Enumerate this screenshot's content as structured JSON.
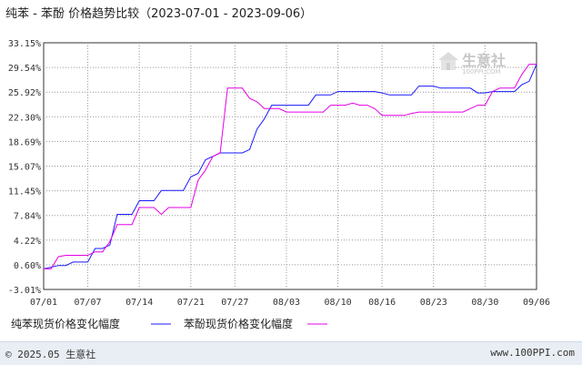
{
  "title": "纯苯 - 苯酚 价格趋势比较（2023-07-01 - 2023-09-06）",
  "watermark": {
    "brand": "生意社",
    "url": "100PPI.COM"
  },
  "footer": {
    "copyright": "© 2025.05 生意社",
    "url": "www.100PPI.com"
  },
  "colors": {
    "series1": "#1a1aff",
    "series2": "#e600e6",
    "grid": "#999999",
    "axis": "#333333"
  },
  "chart_data": {
    "type": "line",
    "title": "纯苯 - 苯酚 价格趋势比较（2023-07-01 - 2023-09-06）",
    "xlabel": "",
    "ylabel": "",
    "x_ticks": [
      "07/01",
      "07/07",
      "07/14",
      "07/21",
      "07/27",
      "08/03",
      "08/10",
      "08/16",
      "08/23",
      "08/30",
      "09/06"
    ],
    "y_ticks": [
      "33.15%",
      "29.54%",
      "25.92%",
      "22.30%",
      "18.69%",
      "15.07%",
      "11.45%",
      "7.84%",
      "4.22%",
      "0.60%",
      "-3.01%"
    ],
    "ylim": [
      -3.01,
      33.15
    ],
    "grid": true,
    "legend_position": "bottom",
    "series": [
      {
        "name": "纯苯现货价格变化幅度",
        "x": [
          "07/01",
          "07/03",
          "07/04",
          "07/05",
          "07/06",
          "07/07",
          "07/08",
          "07/09",
          "07/10",
          "07/11",
          "07/12",
          "07/13",
          "07/14",
          "07/15",
          "07/16",
          "07/17",
          "07/18",
          "07/19",
          "07/20",
          "07/21",
          "07/22",
          "07/23",
          "07/24",
          "07/25",
          "07/26",
          "07/27",
          "07/28",
          "07/29",
          "07/30",
          "07/31",
          "08/01",
          "08/02",
          "08/03",
          "08/04",
          "08/05",
          "08/06",
          "08/07",
          "08/08",
          "08/09",
          "08/10",
          "08/11",
          "08/12",
          "08/13",
          "08/14",
          "08/15",
          "08/16",
          "08/17",
          "08/18",
          "08/19",
          "08/20",
          "08/21",
          "08/22",
          "08/23",
          "08/24",
          "08/25",
          "08/26",
          "08/27",
          "08/28",
          "08/29",
          "08/30",
          "08/31",
          "09/01",
          "09/02",
          "09/03",
          "09/04",
          "09/05",
          "09/06"
        ],
        "values": [
          0.0,
          0.5,
          0.5,
          1.0,
          1.0,
          1.0,
          3.0,
          3.0,
          3.5,
          8.0,
          8.0,
          8.0,
          10.0,
          10.0,
          10.0,
          11.5,
          11.5,
          11.5,
          11.5,
          13.5,
          14.0,
          16.0,
          16.5,
          17.0,
          17.0,
          17.0,
          17.0,
          17.5,
          20.5,
          22.0,
          24.0,
          24.0,
          24.0,
          24.0,
          24.0,
          24.0,
          25.5,
          25.5,
          25.5,
          26.0,
          26.0,
          26.0,
          26.0,
          26.0,
          26.0,
          25.8,
          25.5,
          25.5,
          25.5,
          25.5,
          26.8,
          26.8,
          26.8,
          26.5,
          26.5,
          26.5,
          26.5,
          26.5,
          25.8,
          25.8,
          26.0,
          26.0,
          26.0,
          26.0,
          27.0,
          27.5,
          30.0
        ]
      },
      {
        "name": "苯酚现货价格变化幅度",
        "x": [
          "07/01",
          "07/02",
          "07/03",
          "07/04",
          "07/05",
          "07/06",
          "07/07",
          "07/08",
          "07/09",
          "07/10",
          "07/11",
          "07/12",
          "07/13",
          "07/14",
          "07/15",
          "07/16",
          "07/17",
          "07/18",
          "07/19",
          "07/20",
          "07/21",
          "07/22",
          "07/23",
          "07/24",
          "07/25",
          "07/26",
          "07/27",
          "07/28",
          "07/29",
          "07/30",
          "07/31",
          "08/01",
          "08/02",
          "08/03",
          "08/04",
          "08/05",
          "08/06",
          "08/07",
          "08/08",
          "08/09",
          "08/10",
          "08/11",
          "08/12",
          "08/13",
          "08/14",
          "08/15",
          "08/16",
          "08/17",
          "08/18",
          "08/19",
          "08/20",
          "08/21",
          "08/22",
          "08/23",
          "08/24",
          "08/25",
          "08/26",
          "08/27",
          "08/28",
          "08/29",
          "08/30",
          "08/31",
          "09/01",
          "09/02",
          "09/03",
          "09/04",
          "09/05",
          "09/06"
        ],
        "values": [
          0.0,
          0.0,
          1.8,
          2.0,
          2.0,
          2.0,
          2.0,
          2.5,
          2.5,
          4.0,
          6.5,
          6.5,
          6.5,
          9.0,
          9.0,
          9.0,
          8.0,
          9.0,
          9.0,
          9.0,
          9.0,
          13.0,
          14.5,
          16.5,
          17.0,
          26.5,
          26.5,
          26.5,
          25.0,
          24.5,
          23.5,
          23.5,
          23.5,
          23.0,
          23.0,
          23.0,
          23.0,
          23.0,
          23.0,
          24.0,
          24.0,
          24.0,
          24.3,
          24.0,
          24.0,
          23.5,
          22.5,
          22.5,
          22.5,
          22.5,
          22.8,
          23.0,
          23.0,
          23.0,
          23.0,
          23.0,
          23.0,
          23.0,
          23.5,
          24.0,
          24.0,
          26.0,
          26.5,
          26.5,
          26.5,
          28.5,
          30.0,
          30.0
        ]
      }
    ]
  }
}
